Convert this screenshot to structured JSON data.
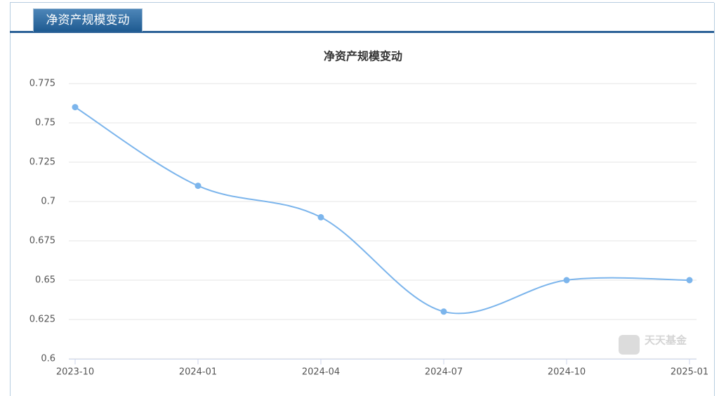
{
  "tab": "净资产规模变动",
  "watermark": "天天基金",
  "chart_data": {
    "type": "line",
    "title": "净资产规模变动",
    "categories": [
      "2023-10",
      "2024-01",
      "2024-04",
      "2024-07",
      "2024-10",
      "2025-01"
    ],
    "values": [
      0.76,
      0.71,
      0.69,
      0.63,
      0.65,
      0.65
    ],
    "color": "#7cb5ec",
    "smooth": true,
    "ylim": [
      0.6,
      0.775
    ],
    "yticks": [
      0.6,
      0.625,
      0.65,
      0.675,
      0.7,
      0.725,
      0.75,
      0.775
    ],
    "grid": true
  }
}
